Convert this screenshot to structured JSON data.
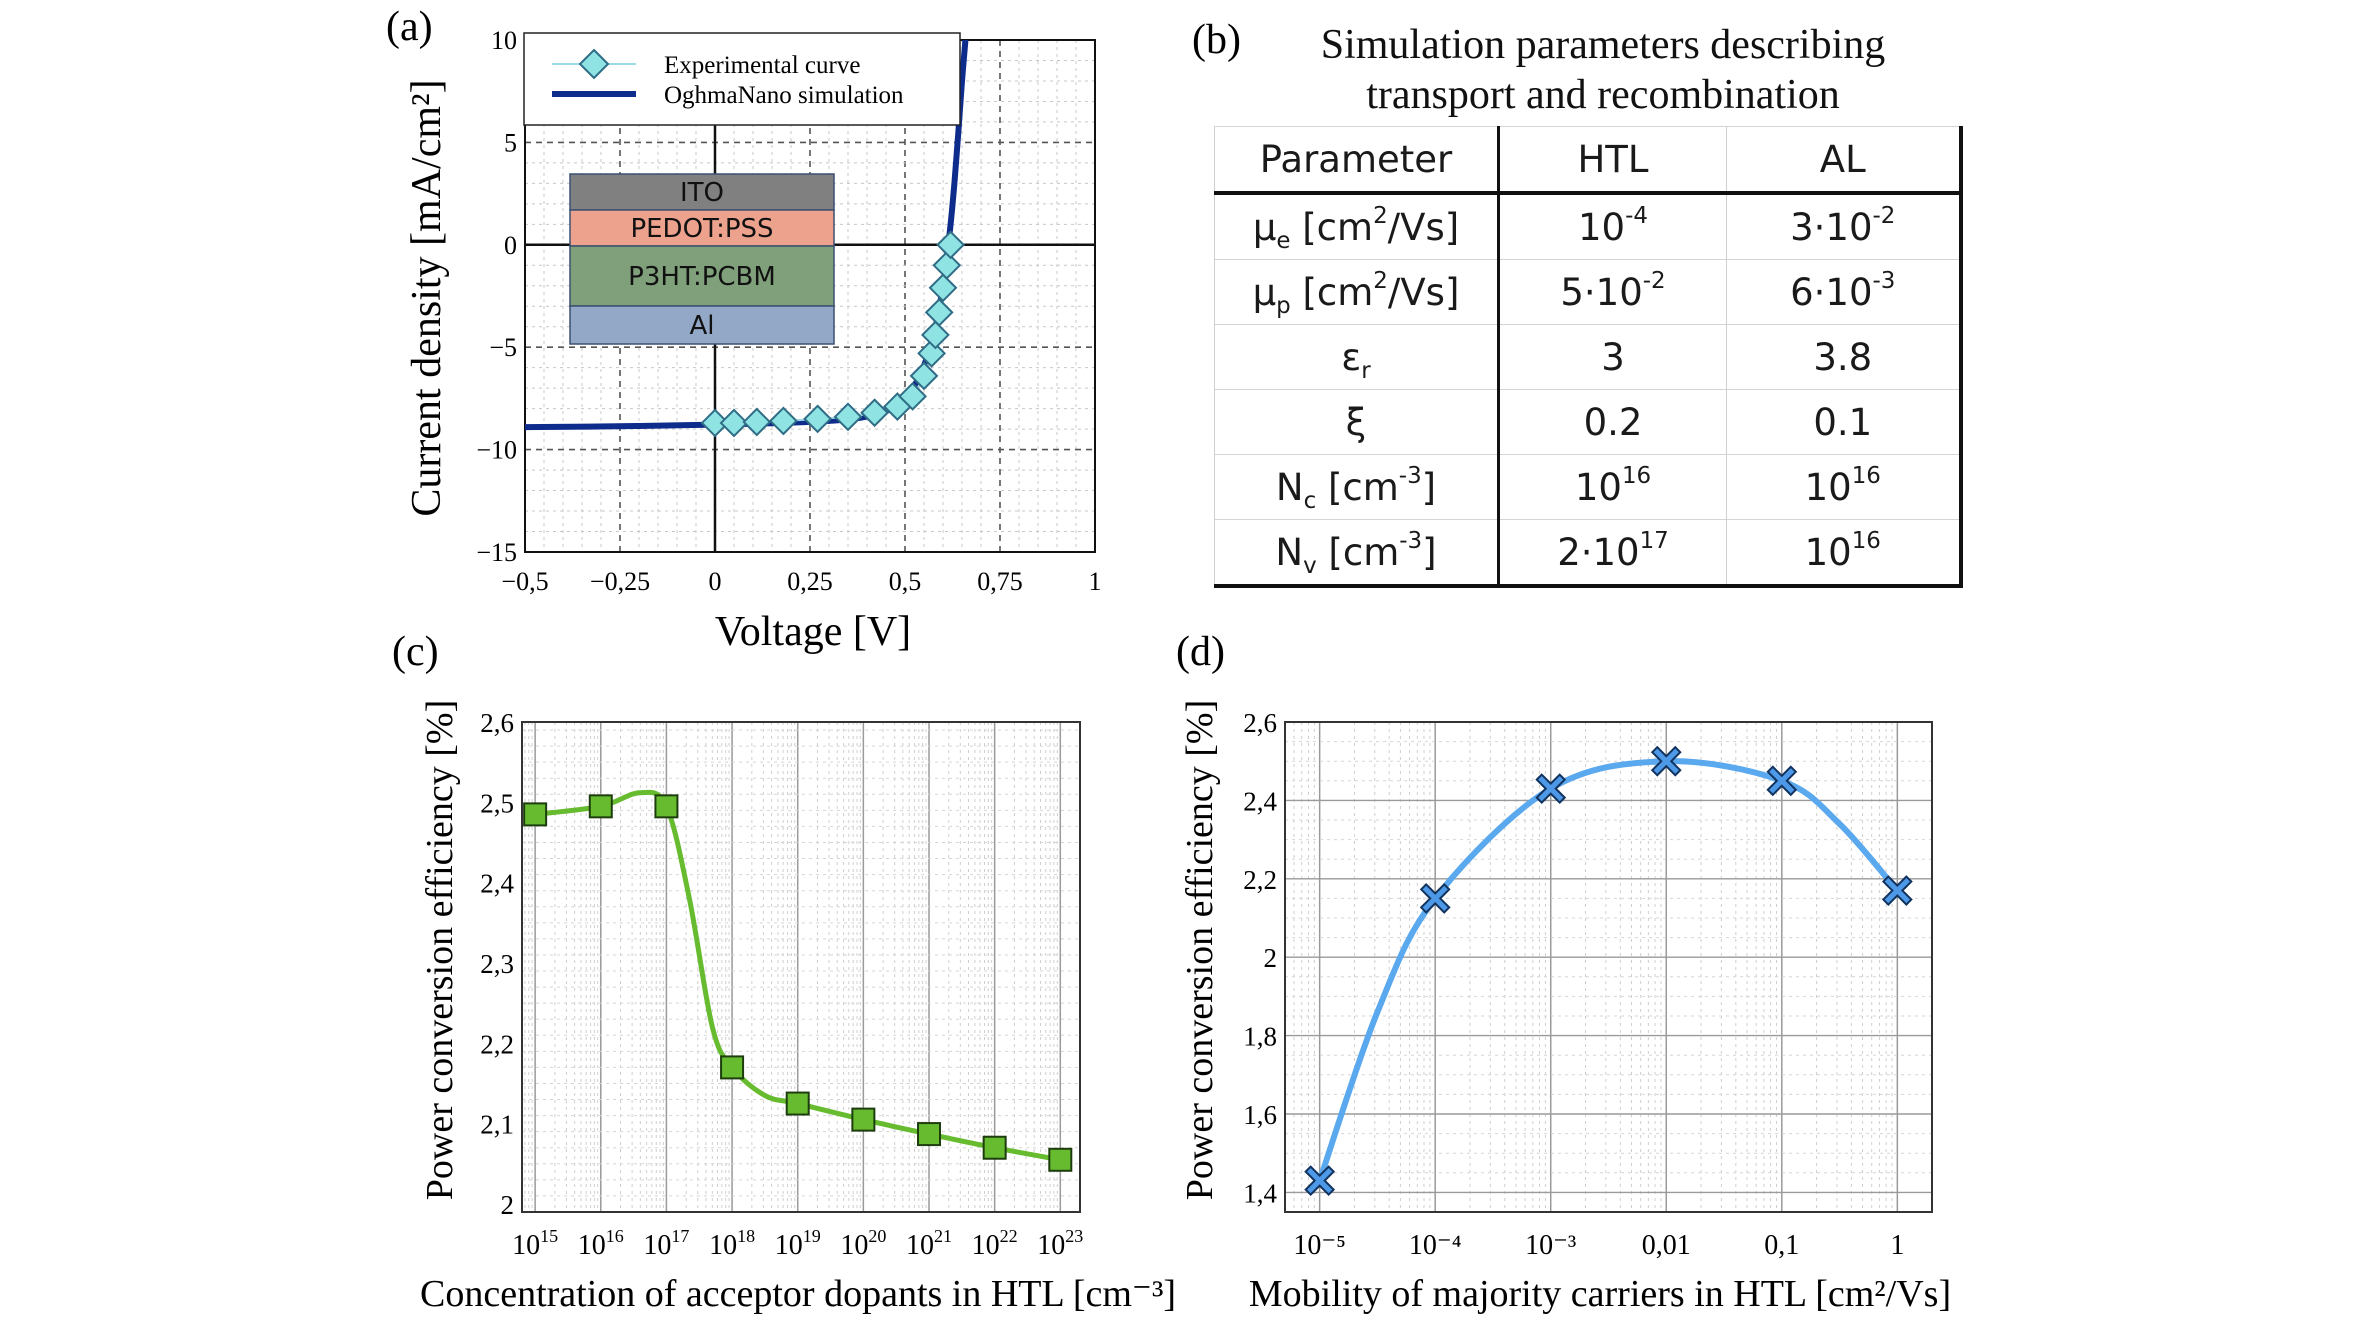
{
  "colors": {
    "sim_line": "#0e2c8c",
    "exp_marker": "#8fe3e3",
    "exp_line": "#9fd8e6",
    "pce_c_line": "#66bb2e",
    "pce_c_marker": "#66bb2e",
    "pce_d_line": "#5aa8ee",
    "pce_d_marker": "#4d99e8",
    "ito": "#808080",
    "pedot": "#eda28e",
    "p3ht": "#7fa07a",
    "al": "#92a8c6"
  },
  "panels": {
    "a": "(a)",
    "b": "(b)",
    "c": "(c)",
    "d": "(d)"
  },
  "table": {
    "title_line1": "Simulation parameters describing",
    "title_line2": "transport and recombination",
    "headers": [
      "Parameter",
      "HTL",
      "AL"
    ],
    "rows": [
      {
        "p_base": "μ",
        "p_sub": "e",
        "p_unit": " [cm",
        "p_sup": "2",
        "p_tail": "/Vs]",
        "htl_base": "10",
        "htl_exp": "-4",
        "al_base": "3·10",
        "al_exp": "-2"
      },
      {
        "p_base": "μ",
        "p_sub": "p",
        "p_unit": " [cm",
        "p_sup": "2",
        "p_tail": "/Vs]",
        "htl_base": "5·10",
        "htl_exp": "-2",
        "al_base": "6·10",
        "al_exp": "-3"
      },
      {
        "p_base": "ε",
        "p_sub": "r",
        "p_unit": "",
        "p_sup": "",
        "p_tail": "",
        "htl_base": "3",
        "htl_exp": "",
        "al_base": "3.8",
        "al_exp": ""
      },
      {
        "p_base": "ξ",
        "p_sub": "",
        "p_unit": "",
        "p_sup": "",
        "p_tail": "",
        "htl_base": "0.2",
        "htl_exp": "",
        "al_base": "0.1",
        "al_exp": ""
      },
      {
        "p_base": "N",
        "p_sub": "c",
        "p_unit": " [cm",
        "p_sup": "-3",
        "p_tail": "]",
        "htl_base": "10",
        "htl_exp": "16",
        "al_base": "10",
        "al_exp": "16"
      },
      {
        "p_base": "N",
        "p_sub": "v",
        "p_unit": " [cm",
        "p_sup": "-3",
        "p_tail": "]",
        "htl_base": "2·10",
        "htl_exp": "17",
        "al_base": "10",
        "al_exp": "16"
      }
    ]
  },
  "chart_data": [
    {
      "id": "a",
      "type": "line",
      "xlabel": "Voltage [V]",
      "ylabel": "Current density [mA/cm²]",
      "xlim": [
        -0.5,
        1
      ],
      "ylim": [
        -15,
        10
      ],
      "xticks": [
        -0.5,
        -0.25,
        0,
        0.25,
        0.5,
        0.75,
        1
      ],
      "xtick_labels": [
        "−0,5",
        "−0,25",
        "0",
        "0,25",
        "0,5",
        "0,75",
        "1"
      ],
      "yticks": [
        -15,
        -10,
        -5,
        0,
        5,
        10
      ],
      "ytick_labels": [
        "−15",
        "−10",
        "−5",
        "0",
        "5",
        "10"
      ],
      "grid": true,
      "legend": {
        "position": "top",
        "entries": [
          "Experimental curve",
          "OghmaNano simulation"
        ]
      },
      "inset_layers": [
        "ITO",
        "PEDOT:PSS",
        "P3HT:PCBM",
        "Al"
      ],
      "series": [
        {
          "name": "Experimental curve",
          "marker": "diamond",
          "x": [
            0,
            0.05,
            0.11,
            0.18,
            0.27,
            0.35,
            0.42,
            0.48,
            0.52,
            0.55,
            0.57,
            0.58,
            0.59,
            0.6,
            0.61,
            0.62
          ],
          "y": [
            -8.7,
            -8.7,
            -8.65,
            -8.6,
            -8.5,
            -8.4,
            -8.2,
            -7.9,
            -7.4,
            -6.4,
            -5.3,
            -4.4,
            -3.3,
            -2.1,
            -1.0,
            0.0
          ]
        },
        {
          "name": "OghmaNano simulation",
          "marker": "none",
          "x": [
            -0.5,
            -0.2,
            0,
            0.1,
            0.2,
            0.3,
            0.38,
            0.44,
            0.48,
            0.51,
            0.53,
            0.55,
            0.57,
            0.585,
            0.6,
            0.61,
            0.62,
            0.63,
            0.64,
            0.65,
            0.66
          ],
          "y": [
            -8.9,
            -8.85,
            -8.78,
            -8.74,
            -8.68,
            -8.6,
            -8.45,
            -8.2,
            -7.8,
            -7.3,
            -6.7,
            -5.9,
            -4.8,
            -3.6,
            -2.0,
            -0.6,
            1.0,
            3.0,
            5.4,
            8.0,
            10.2
          ]
        }
      ]
    },
    {
      "id": "c",
      "type": "line",
      "xscale": "log",
      "xlabel": "Concentration of acceptor dopants in HTL [cm⁻³]",
      "ylabel": "Power conversion efficiency [%]",
      "xlim_exp": [
        14.8,
        23.3
      ],
      "ylim": [
        1.99,
        2.6
      ],
      "xticks_exp": [
        15,
        16,
        17,
        18,
        19,
        20,
        21,
        22,
        23
      ],
      "yticks": [
        2,
        2.1,
        2.2,
        2.3,
        2.4,
        2.5,
        2.6
      ],
      "ytick_labels": [
        "2",
        "2,1",
        "2,2",
        "2,3",
        "2,4",
        "2,5",
        "2,6"
      ],
      "grid": true,
      "series": [
        {
          "marker": "square",
          "x_exp": [
            15,
            16,
            17,
            18,
            19,
            20,
            21,
            22,
            23
          ],
          "y": [
            2.485,
            2.495,
            2.495,
            2.17,
            2.125,
            2.105,
            2.087,
            2.07,
            2.055
          ]
        }
      ]
    },
    {
      "id": "d",
      "type": "line",
      "xscale": "log",
      "xlabel": "Mobility of majority carriers in HTL [cm²/Vs]",
      "ylabel": "Power conversion efficiency [%]",
      "xlim_exp": [
        -5.3,
        0.3
      ],
      "ylim": [
        1.35,
        2.6
      ],
      "xticks_exp": [
        -5,
        -4,
        -3,
        -2,
        -1,
        0
      ],
      "xtick_labels": [
        "10⁻⁵",
        "10⁻⁴",
        "10⁻³",
        "0,01",
        "0,1",
        "1"
      ],
      "yticks": [
        1.4,
        1.6,
        1.8,
        2,
        2.2,
        2.4,
        2.6
      ],
      "ytick_labels": [
        "1,4",
        "1,6",
        "1,8",
        "2",
        "2,2",
        "2,4",
        "2,6"
      ],
      "grid": true,
      "series": [
        {
          "marker": "cross",
          "x_exp": [
            -5,
            -4,
            -3,
            -2,
            -1,
            0
          ],
          "y": [
            1.43,
            2.15,
            2.43,
            2.5,
            2.45,
            2.17
          ]
        }
      ]
    }
  ]
}
